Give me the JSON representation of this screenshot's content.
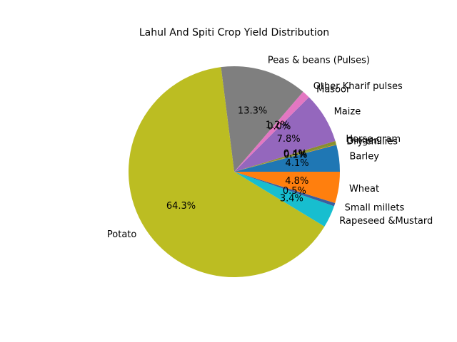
{
  "chart_data": {
    "type": "pie",
    "title": "Lahul And Spiti Crop Yield Distribution",
    "start_angle_deg": 0,
    "direction": "counterclockwise",
    "slices": [
      {
        "label": "Barley",
        "value": 4.1,
        "pct_label": "4.1%",
        "color": "#1f77b4"
      },
      {
        "label": "Dry chillies",
        "value": 0.1,
        "pct_label": "0.1%",
        "color": "#ff7f0e"
      },
      {
        "label": "Ginger",
        "value": 0.1,
        "pct_label": "0.1%",
        "color": "#2ca02c"
      },
      {
        "label": "Horse-gram",
        "value": 0.4,
        "pct_label": "0.4%",
        "color": "#8c8c2c"
      },
      {
        "label": "Maize",
        "value": 7.8,
        "pct_label": "7.8%",
        "color": "#9467bd"
      },
      {
        "label": "Masoor",
        "value": 0.0,
        "pct_label": "0.0%",
        "color": "#8c564b"
      },
      {
        "label": "Other Kharif pulses",
        "value": 1.2,
        "pct_label": "1.2%",
        "color": "#e377c2"
      },
      {
        "label": "Peas & beans (Pulses)",
        "value": 13.3,
        "pct_label": "13.3%",
        "color": "#7f7f7f"
      },
      {
        "label": "Potato",
        "value": 64.3,
        "pct_label": "64.3%",
        "color": "#bcbd22"
      },
      {
        "label": "Rapeseed &Mustard",
        "value": 3.4,
        "pct_label": "3.4%",
        "color": "#17becf"
      },
      {
        "label": "Small millets",
        "value": 0.5,
        "pct_label": "0.5%",
        "color": "#3a5f9f"
      },
      {
        "label": "Wheat",
        "value": 4.8,
        "pct_label": "4.8%",
        "color": "#ff7f0e"
      }
    ]
  }
}
